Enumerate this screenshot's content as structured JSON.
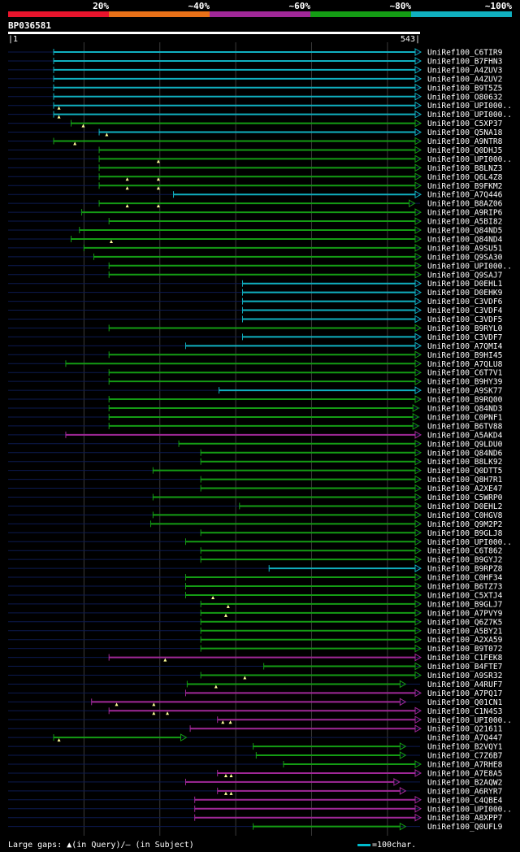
{
  "legend": {
    "segments": [
      {
        "color": "#e8142c",
        "label": "20%"
      },
      {
        "color": "#e87018",
        "label": "~40%"
      },
      {
        "color": "#a02898",
        "label": "~60%"
      },
      {
        "color": "#149c14",
        "label": "~80%"
      },
      {
        "color": "#10b0c0",
        "label": "~100%"
      }
    ]
  },
  "query": {
    "id": "BP036581",
    "start": "|1",
    "end": "543|",
    "length": 543
  },
  "footer": {
    "gaps_text": "Large gaps: ▲(in Query)/– (in Subject)",
    "scale_text": "=100char."
  },
  "colors": {
    "green": "#149c14",
    "cyan": "#10b0c0",
    "magenta": "#a02898",
    "track": "#0c1a50"
  },
  "hits": [
    {
      "label": "UniRef100_C6TIR9",
      "c": "cyan",
      "s": 60,
      "e": 543,
      "arrow": "cyan"
    },
    {
      "label": "UniRef100_B7FHN3",
      "c": "cyan",
      "s": 60,
      "e": 543,
      "arrow": "cyan"
    },
    {
      "label": "UniRef100_A4ZUV3",
      "c": "cyan",
      "s": 60,
      "e": 543,
      "arrow": "cyan"
    },
    {
      "label": "UniRef100_A4ZUV2",
      "c": "cyan",
      "s": 60,
      "e": 543,
      "arrow": "cyan"
    },
    {
      "label": "UniRef100_B9T5Z5",
      "c": "cyan",
      "s": 60,
      "e": 543,
      "arrow": "cyan"
    },
    {
      "label": "UniRef100_O80632",
      "c": "cyan",
      "s": 60,
      "e": 543,
      "arrow": "cyan"
    },
    {
      "label": "UniRef100_UPI000..",
      "c": "cyan",
      "s": 60,
      "e": 543,
      "arrow": "cyan",
      "tri": [
        67
      ]
    },
    {
      "label": "UniRef100_UPI000..",
      "c": "cyan",
      "s": 60,
      "e": 543,
      "arrow": "cyan",
      "tri": [
        67
      ]
    },
    {
      "label": "UniRef100_C5XP37",
      "c": "green",
      "s": 83,
      "e": 543,
      "arrow": "green",
      "tri": [
        99
      ]
    },
    {
      "label": "UniRef100_Q5NA18",
      "c": "cyan",
      "s": 120,
      "e": 543,
      "arrow": "cyan",
      "tri": [
        130
      ]
    },
    {
      "label": "UniRef100_A9NTR8",
      "c": "green",
      "s": 60,
      "e": 543,
      "arrow": "green",
      "tri": [
        88
      ]
    },
    {
      "label": "UniRef100_Q0DHJ5",
      "c": "green",
      "s": 120,
      "e": 543,
      "arrow": "green"
    },
    {
      "label": "UniRef100_UPI000..",
      "c": "green",
      "s": 120,
      "e": 543,
      "arrow": "green",
      "tri": [
        198
      ]
    },
    {
      "label": "UniRef100_B8LNZ3",
      "c": "green",
      "s": 120,
      "e": 543,
      "arrow": "green"
    },
    {
      "label": "UniRef100_Q6L4Z8",
      "c": "green",
      "s": 120,
      "e": 543,
      "arrow": "green",
      "tri": [
        157,
        198
      ]
    },
    {
      "label": "UniRef100_B9FKM2",
      "c": "green",
      "s": 120,
      "e": 543,
      "arrow": "green",
      "tri": [
        157,
        198
      ]
    },
    {
      "label": "UniRef100_A7Q446",
      "c": "cyan",
      "s": 218,
      "e": 543,
      "arrow": "cyan"
    },
    {
      "label": "UniRef100_B8AZ06",
      "c": "green",
      "s": 120,
      "e": 535,
      "arrow": "green",
      "tri": [
        157,
        198
      ]
    },
    {
      "label": "UniRef100_A9RIP6",
      "c": "green",
      "s": 97,
      "e": 543,
      "arrow": "green"
    },
    {
      "label": "UniRef100_A5BI82",
      "c": "green",
      "s": 133,
      "e": 543,
      "arrow": "green"
    },
    {
      "label": "UniRef100_Q84ND5",
      "c": "green",
      "s": 94,
      "e": 543,
      "arrow": "green"
    },
    {
      "label": "UniRef100_Q84ND4",
      "c": "green",
      "s": 83,
      "e": 543,
      "arrow": "green",
      "tri": [
        136
      ]
    },
    {
      "label": "UniRef100_A9SU51",
      "c": "green",
      "s": 100,
      "e": 543,
      "arrow": "green"
    },
    {
      "label": "UniRef100_Q9SA30",
      "c": "green",
      "s": 113,
      "e": 543,
      "arrow": "green"
    },
    {
      "label": "UniRef100_UPI000..",
      "c": "green",
      "s": 133,
      "e": 543,
      "arrow": "green"
    },
    {
      "label": "UniRef100_Q9SAJ7",
      "c": "green",
      "s": 133,
      "e": 543,
      "arrow": "green"
    },
    {
      "label": "UniRef100_D0EHL1",
      "c": "cyan",
      "s": 309,
      "e": 543,
      "arrow": "cyan"
    },
    {
      "label": "UniRef100_D0EHK9",
      "c": "cyan",
      "s": 309,
      "e": 543,
      "arrow": "cyan"
    },
    {
      "label": "UniRef100_C3VDF6",
      "c": "cyan",
      "s": 309,
      "e": 543,
      "arrow": "cyan"
    },
    {
      "label": "UniRef100_C3VDF4",
      "c": "cyan",
      "s": 309,
      "e": 543,
      "arrow": "cyan"
    },
    {
      "label": "UniRef100_C3VDF5",
      "c": "cyan",
      "s": 309,
      "e": 543,
      "arrow": "cyan"
    },
    {
      "label": "UniRef100_B9RYL0",
      "c": "green",
      "s": 133,
      "e": 543,
      "arrow": "green"
    },
    {
      "label": "UniRef100_C3VDF7",
      "c": "cyan",
      "s": 309,
      "e": 543,
      "arrow": "cyan"
    },
    {
      "label": "UniRef100_A7QMI4",
      "c": "cyan",
      "s": 234,
      "e": 543,
      "arrow": "cyan"
    },
    {
      "label": "UniRef100_B9HI45",
      "c": "green",
      "s": 133,
      "e": 543,
      "arrow": "green"
    },
    {
      "label": "UniRef100_A7QLU8",
      "c": "green",
      "s": 76,
      "e": 543,
      "arrow": "green"
    },
    {
      "label": "UniRef100_C6T7V1",
      "c": "green",
      "s": 133,
      "e": 543,
      "arrow": "green"
    },
    {
      "label": "UniRef100_B9HY39",
      "c": "green",
      "s": 133,
      "e": 543,
      "arrow": "green"
    },
    {
      "label": "UniRef100_A9SK77",
      "c": "cyan",
      "s": 278,
      "e": 543,
      "arrow": "cyan"
    },
    {
      "label": "UniRef100_B9RQ00",
      "c": "green",
      "s": 133,
      "e": 543,
      "arrow": "green"
    },
    {
      "label": "UniRef100_Q84ND3",
      "c": "green",
      "s": 133,
      "e": 540,
      "arrow": "green"
    },
    {
      "label": "UniRef100_C0PNF1",
      "c": "green",
      "s": 133,
      "e": 540,
      "arrow": "green"
    },
    {
      "label": "UniRef100_B6TV88",
      "c": "green",
      "s": 133,
      "e": 540,
      "arrow": "green"
    },
    {
      "label": "UniRef100_A5AKD4",
      "c": "magenta",
      "s": 76,
      "e": 543,
      "arrow": "magenta"
    },
    {
      "label": "UniRef100_Q9LDU0",
      "c": "green",
      "s": 225,
      "e": 543,
      "arrow": "green"
    },
    {
      "label": "UniRef100_Q84ND6",
      "c": "green",
      "s": 254,
      "e": 543,
      "arrow": "green"
    },
    {
      "label": "UniRef100_B8LK92",
      "c": "green",
      "s": 254,
      "e": 543,
      "arrow": "green"
    },
    {
      "label": "UniRef100_Q0DTT5",
      "c": "green",
      "s": 191,
      "e": 543,
      "arrow": "green"
    },
    {
      "label": "UniRef100_Q8H7R1",
      "c": "green",
      "s": 254,
      "e": 543,
      "arrow": "green"
    },
    {
      "label": "UniRef100_A2XE47",
      "c": "green",
      "s": 254,
      "e": 543,
      "arrow": "green"
    },
    {
      "label": "UniRef100_C5WRP0",
      "c": "green",
      "s": 191,
      "e": 543,
      "arrow": "green"
    },
    {
      "label": "UniRef100_D0EHL2",
      "c": "green",
      "s": 305,
      "e": 543,
      "arrow": "green"
    },
    {
      "label": "UniRef100_C0HGV8",
      "c": "green",
      "s": 191,
      "e": 543,
      "arrow": "green"
    },
    {
      "label": "UniRef100_Q9M2P2",
      "c": "green",
      "s": 188,
      "e": 543,
      "arrow": "green"
    },
    {
      "label": "UniRef100_B9GLJ8",
      "c": "green",
      "s": 254,
      "e": 543,
      "arrow": "green"
    },
    {
      "label": "UniRef100_UPI000..",
      "c": "green",
      "s": 234,
      "e": 543,
      "arrow": "green"
    },
    {
      "label": "UniRef100_C6T862",
      "c": "green",
      "s": 254,
      "e": 543,
      "arrow": "green"
    },
    {
      "label": "UniRef100_B9GYJ2",
      "c": "green",
      "s": 254,
      "e": 543,
      "arrow": "green"
    },
    {
      "label": "UniRef100_B9RPZ8",
      "c": "cyan",
      "s": 344,
      "e": 543,
      "arrow": "cyan"
    },
    {
      "label": "UniRef100_C0HF34",
      "c": "green",
      "s": 234,
      "e": 543,
      "arrow": "green"
    },
    {
      "label": "UniRef100_B6TZ73",
      "c": "green",
      "s": 234,
      "e": 543,
      "arrow": "green"
    },
    {
      "label": "UniRef100_C5XTJ4",
      "c": "green",
      "s": 234,
      "e": 543,
      "arrow": "green",
      "tri": [
        270
      ]
    },
    {
      "label": "UniRef100_B9GLJ7",
      "c": "green",
      "s": 254,
      "e": 543,
      "arrow": "green",
      "tri": [
        290
      ]
    },
    {
      "label": "UniRef100_A7PVY9",
      "c": "green",
      "s": 254,
      "e": 543,
      "arrow": "green",
      "tri": [
        287
      ]
    },
    {
      "label": "UniRef100_Q6Z7K5",
      "c": "green",
      "s": 254,
      "e": 543,
      "arrow": "green"
    },
    {
      "label": "UniRef100_A5BY21",
      "c": "green",
      "s": 254,
      "e": 543,
      "arrow": "green"
    },
    {
      "label": "UniRef100_A2XA59",
      "c": "green",
      "s": 254,
      "e": 543,
      "arrow": "green"
    },
    {
      "label": "UniRef100_B9T072",
      "c": "green",
      "s": 254,
      "e": 543,
      "arrow": "green"
    },
    {
      "label": "UniRef100_C1FEK8",
      "c": "magenta",
      "s": 133,
      "e": 543,
      "arrow": "magenta",
      "tri": [
        207
      ]
    },
    {
      "label": "UniRef100_B4FTE7",
      "c": "green",
      "s": 337,
      "e": 543,
      "arrow": "green"
    },
    {
      "label": "UniRef100_A9SR32",
      "c": "green",
      "s": 254,
      "e": 543,
      "arrow": "green",
      "tri": [
        312
      ]
    },
    {
      "label": "UniRef100_A4RUF7",
      "c": "green",
      "s": 236,
      "e": 523,
      "arrow": "green",
      "tri": [
        274
      ]
    },
    {
      "label": "UniRef100_A7PQ17",
      "c": "magenta",
      "s": 234,
      "e": 543,
      "arrow": "magenta"
    },
    {
      "label": "UniRef100_Q01CN1",
      "c": "magenta",
      "s": 110,
      "e": 523,
      "arrow": "magenta",
      "tri": [
        143,
        192
      ]
    },
    {
      "label": "UniRef100_C1N4S3",
      "c": "magenta",
      "s": 133,
      "e": 543,
      "arrow": "magenta",
      "tri": [
        192,
        210
      ]
    },
    {
      "label": "UniRef100_UPI000..",
      "c": "magenta",
      "s": 276,
      "e": 543,
      "arrow": "magenta",
      "tri": [
        283,
        293
      ]
    },
    {
      "label": "UniRef100_Q21611",
      "c": "magenta",
      "s": 240,
      "e": 543,
      "arrow": "magenta"
    },
    {
      "label": "UniRef100_A7Q447",
      "c": "green",
      "s": 60,
      "e": 234,
      "arrow": "green",
      "tri": [
        67
      ]
    },
    {
      "label": "UniRef100_B2VQY1",
      "c": "green",
      "s": 323,
      "e": 523,
      "arrow": "green"
    },
    {
      "label": "UniRef100_C7Z6B7",
      "c": "green",
      "s": 327,
      "e": 523,
      "arrow": "green"
    },
    {
      "label": "UniRef100_A7RHE8",
      "c": "green",
      "s": 363,
      "e": 543,
      "arrow": "green"
    },
    {
      "label": "UniRef100_A7E8A5",
      "c": "magenta",
      "s": 276,
      "e": 543,
      "arrow": "magenta",
      "tri": [
        287,
        294
      ]
    },
    {
      "label": "UniRef100_B2AQW2",
      "c": "magenta",
      "s": 234,
      "e": 515,
      "arrow": "magenta"
    },
    {
      "label": "UniRef100_A6RYR7",
      "c": "magenta",
      "s": 276,
      "e": 523,
      "arrow": "magenta",
      "tri": [
        287,
        294
      ]
    },
    {
      "label": "UniRef100_C4QBE4",
      "c": "magenta",
      "s": 246,
      "e": 543,
      "arrow": "magenta"
    },
    {
      "label": "UniRef100_UPI000..",
      "c": "magenta",
      "s": 246,
      "e": 543,
      "arrow": "magenta"
    },
    {
      "label": "UniRef100_A8XPP7",
      "c": "magenta",
      "s": 246,
      "e": 543,
      "arrow": "magenta"
    },
    {
      "label": "UniRef100_Q0UFL9",
      "c": "green",
      "s": 323,
      "e": 523,
      "arrow": "green"
    }
  ]
}
